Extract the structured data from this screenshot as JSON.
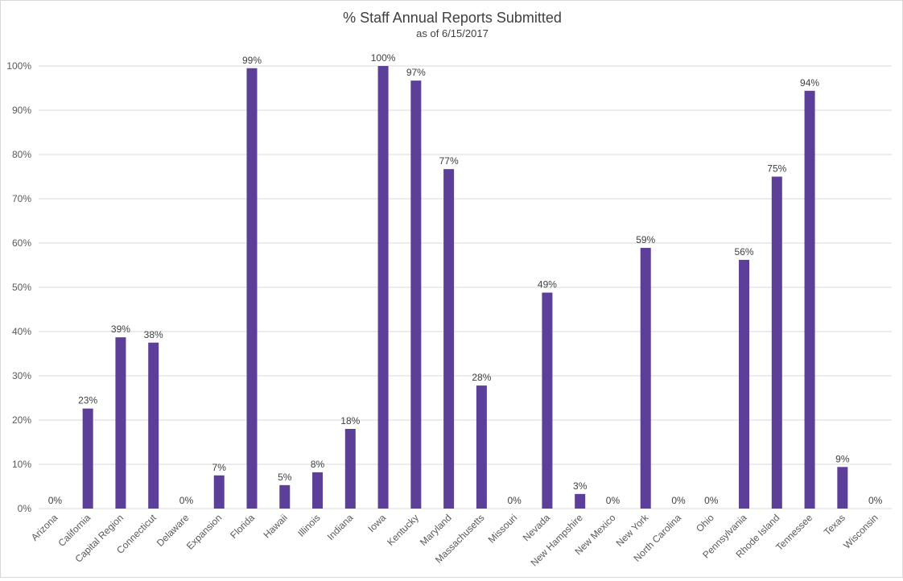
{
  "chart_data": {
    "type": "bar",
    "title": "% Staff Annual Reports Submitted",
    "subtitle": "as of 6/15/2017",
    "xlabel": "",
    "ylabel": "",
    "ylim": [
      0,
      100
    ],
    "yticks": [
      "0%",
      "10%",
      "20%",
      "30%",
      "40%",
      "50%",
      "60%",
      "70%",
      "80%",
      "90%",
      "100%"
    ],
    "grid": true,
    "bar_color": "#5B3F99",
    "categories": [
      "Arizona",
      "California",
      "Capital Region",
      "Connecticut",
      "Delaware",
      "Expansion",
      "Florida",
      "Hawaii",
      "Illinois",
      "Indiana",
      "Iowa",
      "Kentucky",
      "Maryland",
      "Massachusetts",
      "Missouri",
      "Nevada",
      "New Hampshire",
      "New Mexico",
      "New York",
      "North Carolina",
      "Ohio",
      "Pennsylvania",
      "Rhode Island",
      "Tennessee",
      "Texas",
      "Wisconsin"
    ],
    "values": [
      0,
      22.6,
      38.7,
      37.5,
      0,
      7.5,
      99.5,
      5.3,
      8.2,
      18,
      100,
      96.7,
      76.7,
      27.8,
      0,
      48.8,
      3.3,
      0,
      58.9,
      0,
      0,
      56.2,
      75,
      94.4,
      9.4,
      0
    ],
    "data_labels": [
      "0%",
      "23%",
      "39%",
      "38%",
      "0%",
      "7%",
      "99%",
      "5%",
      "8%",
      "18%",
      "100%",
      "97%",
      "77%",
      "28%",
      "0%",
      "49%",
      "3%",
      "0%",
      "59%",
      "0%",
      "0%",
      "56%",
      "75%",
      "94%",
      "9%",
      "0%"
    ]
  }
}
